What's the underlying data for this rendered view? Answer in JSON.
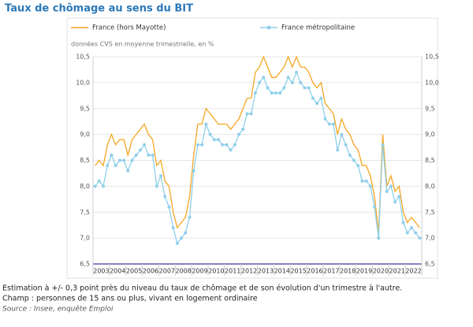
{
  "chart_data": {
    "type": "line",
    "title": "Taux de chômage au sens du BIT",
    "subtitle": "données CVS en moyenne trimestrielle, en %",
    "categories": [
      "2003",
      null,
      null,
      null,
      "2004",
      null,
      null,
      null,
      "2005",
      null,
      null,
      null,
      "2006",
      null,
      null,
      null,
      "2007",
      null,
      null,
      null,
      "2008",
      null,
      null,
      null,
      "2009",
      null,
      null,
      null,
      "2010",
      null,
      null,
      null,
      "2011",
      null,
      null,
      null,
      "2012",
      null,
      null,
      null,
      "2013",
      null,
      null,
      null,
      "2014",
      null,
      null,
      null,
      "2015",
      null,
      null,
      null,
      "2016",
      null,
      null,
      null,
      "2017",
      null,
      null,
      null,
      "2018",
      null,
      null,
      null,
      "2019",
      null,
      null,
      null,
      "2020",
      null,
      null,
      null,
      "2021",
      null,
      null,
      null,
      "2022",
      null,
      null,
      null
    ],
    "series": [
      {
        "name": "France (hors Mayotte)",
        "color": "#f5a623",
        "values": [
          8.4,
          8.5,
          8.4,
          8.8,
          9.0,
          8.8,
          8.9,
          8.9,
          8.6,
          8.9,
          9.0,
          9.1,
          9.2,
          9.0,
          8.9,
          8.4,
          8.5,
          8.1,
          8.0,
          7.5,
          7.2,
          7.3,
          7.4,
          7.8,
          8.6,
          9.2,
          9.2,
          9.5,
          9.4,
          9.3,
          9.2,
          9.2,
          9.2,
          9.1,
          9.2,
          9.3,
          9.5,
          9.7,
          9.7,
          10.2,
          10.3,
          10.5,
          10.3,
          10.1,
          10.1,
          10.2,
          10.3,
          10.5,
          10.3,
          10.5,
          10.3,
          10.3,
          10.2,
          10.0,
          9.9,
          10.0,
          9.6,
          9.5,
          9.4,
          9.0,
          9.3,
          9.1,
          9.0,
          8.8,
          8.7,
          8.4,
          8.4,
          8.2,
          7.8,
          7.1,
          9.0,
          8.0,
          8.2,
          7.9,
          8.0,
          7.5,
          7.3,
          7.4,
          7.3,
          7.2
        ]
      },
      {
        "name": "France métropolitaine",
        "color": "#8fd0ea",
        "values": [
          8.0,
          8.1,
          8.0,
          8.4,
          8.6,
          8.4,
          8.5,
          8.5,
          8.3,
          8.5,
          8.6,
          8.7,
          8.8,
          8.6,
          8.6,
          8.0,
          8.2,
          7.8,
          7.6,
          7.2,
          6.9,
          7.0,
          7.1,
          7.4,
          8.3,
          8.8,
          8.8,
          9.2,
          9.0,
          8.9,
          8.9,
          8.8,
          8.8,
          8.7,
          8.8,
          9.0,
          9.1,
          9.4,
          9.4,
          9.8,
          10.0,
          10.1,
          9.9,
          9.8,
          9.8,
          9.8,
          9.9,
          10.1,
          10.0,
          10.2,
          10.0,
          9.9,
          9.9,
          9.7,
          9.6,
          9.7,
          9.3,
          9.2,
          9.2,
          8.7,
          9.0,
          8.8,
          8.6,
          8.5,
          8.4,
          8.1,
          8.1,
          8.0,
          7.6,
          7.0,
          8.8,
          7.9,
          8.0,
          7.7,
          7.8,
          7.3,
          7.1,
          7.2,
          7.1,
          7.0
        ]
      }
    ],
    "ylim": [
      6.5,
      10.5
    ],
    "yticks": [
      {
        "value": 6.5,
        "label": "6,5"
      },
      {
        "value": 7.0,
        "label": "7,0"
      },
      {
        "value": 7.5,
        "label": "7,5"
      },
      {
        "value": 8.0,
        "label": "8,0"
      },
      {
        "value": 8.5,
        "label": "8,5"
      },
      {
        "value": 9.0,
        "label": "9,0"
      },
      {
        "value": 9.5,
        "label": "9,5"
      },
      {
        "value": 10.0,
        "label": "10,0"
      },
      {
        "value": 10.5,
        "label": "10,5"
      }
    ],
    "grid": true,
    "notes": [
      "Estimation à +/- 0,3 point près du niveau du taux de chômage et de son évolution d'un trimestre à l'autre.",
      "Champ : personnes de 15 ans ou plus, vivant en logement ordinaire"
    ],
    "source": "Source : Insee, enquête Emploi"
  }
}
